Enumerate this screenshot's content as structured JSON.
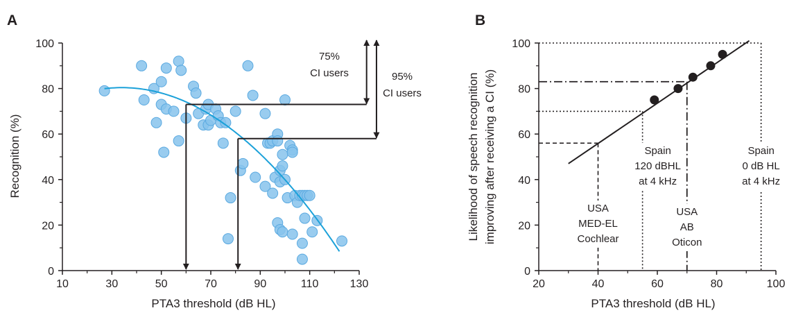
{
  "colors": {
    "points": "#87c3ec",
    "point_stroke": "#5aa9e0",
    "fit": "#1ba1d9",
    "ink": "#231f20",
    "marker": "#231f20"
  },
  "chart_data": [
    {
      "panel_label": "A",
      "type": "scatter",
      "xlabel": "PTA3 threshold (dB HL)",
      "ylabel": "Recognition (%)",
      "xlim": [
        10,
        130
      ],
      "ylim": [
        0,
        100
      ],
      "xticks": [
        "10",
        "30",
        "50",
        "70",
        "90",
        "110",
        "130"
      ],
      "yticks": [
        "0",
        "20",
        "40",
        "60",
        "80",
        "100"
      ],
      "grid": false,
      "points": [
        [
          27,
          79
        ],
        [
          42,
          90
        ],
        [
          43,
          75
        ],
        [
          47,
          80
        ],
        [
          48,
          65
        ],
        [
          50,
          73
        ],
        [
          50,
          83
        ],
        [
          51,
          52
        ],
        [
          52,
          71
        ],
        [
          52,
          89
        ],
        [
          55,
          70
        ],
        [
          57,
          92
        ],
        [
          58,
          88
        ],
        [
          60,
          67
        ],
        [
          63,
          81
        ],
        [
          64,
          78
        ],
        [
          65,
          69
        ],
        [
          67,
          64
        ],
        [
          68,
          71
        ],
        [
          69,
          64
        ],
        [
          69,
          73
        ],
        [
          70,
          66
        ],
        [
          72,
          71
        ],
        [
          73,
          68
        ],
        [
          74,
          65
        ],
        [
          75,
          56
        ],
        [
          76,
          65
        ],
        [
          77,
          14
        ],
        [
          78,
          32
        ],
        [
          80,
          70
        ],
        [
          82,
          44
        ],
        [
          83,
          47
        ],
        [
          85,
          90
        ],
        [
          87,
          77
        ],
        [
          88,
          41
        ],
        [
          92,
          37
        ],
        [
          92,
          69
        ],
        [
          93,
          56
        ],
        [
          94,
          56
        ],
        [
          95,
          57
        ],
        [
          95,
          34
        ],
        [
          96,
          41
        ],
        [
          97,
          60
        ],
        [
          97,
          57
        ],
        [
          97,
          21
        ],
        [
          98,
          18
        ],
        [
          98,
          44
        ],
        [
          98,
          39
        ],
        [
          99,
          46
        ],
        [
          99,
          51
        ],
        [
          99,
          17
        ],
        [
          100,
          40
        ],
        [
          100,
          75
        ],
        [
          101,
          32
        ],
        [
          102,
          55
        ],
        [
          103,
          53
        ],
        [
          103,
          52
        ],
        [
          103,
          16
        ],
        [
          104,
          33
        ],
        [
          105,
          30
        ],
        [
          106,
          33
        ],
        [
          107,
          5
        ],
        [
          107,
          12
        ],
        [
          107,
          33
        ],
        [
          108,
          33
        ],
        [
          108,
          23
        ],
        [
          109,
          33
        ],
        [
          110,
          33
        ],
        [
          111,
          17
        ],
        [
          113,
          22
        ],
        [
          123,
          13
        ],
        [
          57,
          57
        ]
      ],
      "fit_curve": {
        "x_range": [
          27,
          122
        ],
        "peak_x": 34,
        "peak_y": 80.4,
        "coef": 0.00929
      },
      "threshold_arrows": [
        {
          "y": 73,
          "x_from": 133,
          "x_to": 60,
          "label": "75%\nCI users"
        },
        {
          "y": 58,
          "x_from": 137,
          "x_to": 81,
          "label": "95%\nCI users"
        }
      ],
      "annotations": {
        "label_75": [
          "75%",
          "CI users"
        ],
        "label_95": [
          "95%",
          "CI users"
        ]
      }
    },
    {
      "panel_label": "B",
      "type": "line",
      "xlabel": "PTA3 threshold (dB HL)",
      "ylabel": "Likelihood of speech recognition improving after receiving a CI (%)",
      "ylabel_lines": [
        "Likelihood of speech recognition",
        "improving after receiving a CI (%)"
      ],
      "xlim": [
        20,
        100
      ],
      "ylim": [
        0,
        100
      ],
      "xticks": [
        "20",
        "40",
        "60",
        "80",
        "100"
      ],
      "yticks": [
        "0",
        "20",
        "40",
        "60",
        "80",
        "100"
      ],
      "grid": false,
      "line": [
        [
          30,
          47
        ],
        [
          91,
          101
        ]
      ],
      "markers": [
        [
          59,
          75
        ],
        [
          67,
          80
        ],
        [
          72,
          85
        ],
        [
          78,
          90
        ],
        [
          82,
          95
        ]
      ],
      "reference_lines": [
        {
          "style": "dashed",
          "x": 40,
          "y": 56,
          "label": [
            "USA",
            "MED-EL",
            "Cochlear"
          ]
        },
        {
          "style": "dotted",
          "x": 55,
          "y": 70,
          "label": [
            "Spain",
            "120 dBHL",
            "at 4 kHz"
          ]
        },
        {
          "style": "dashdot",
          "x": 70,
          "y": 83,
          "label": [
            "USA",
            "AB",
            "Oticon"
          ]
        },
        {
          "style": "dotted",
          "x": 95,
          "y": 100,
          "label": [
            "Spain",
            "0 dB HL",
            "at 4 kHz"
          ]
        }
      ]
    }
  ]
}
